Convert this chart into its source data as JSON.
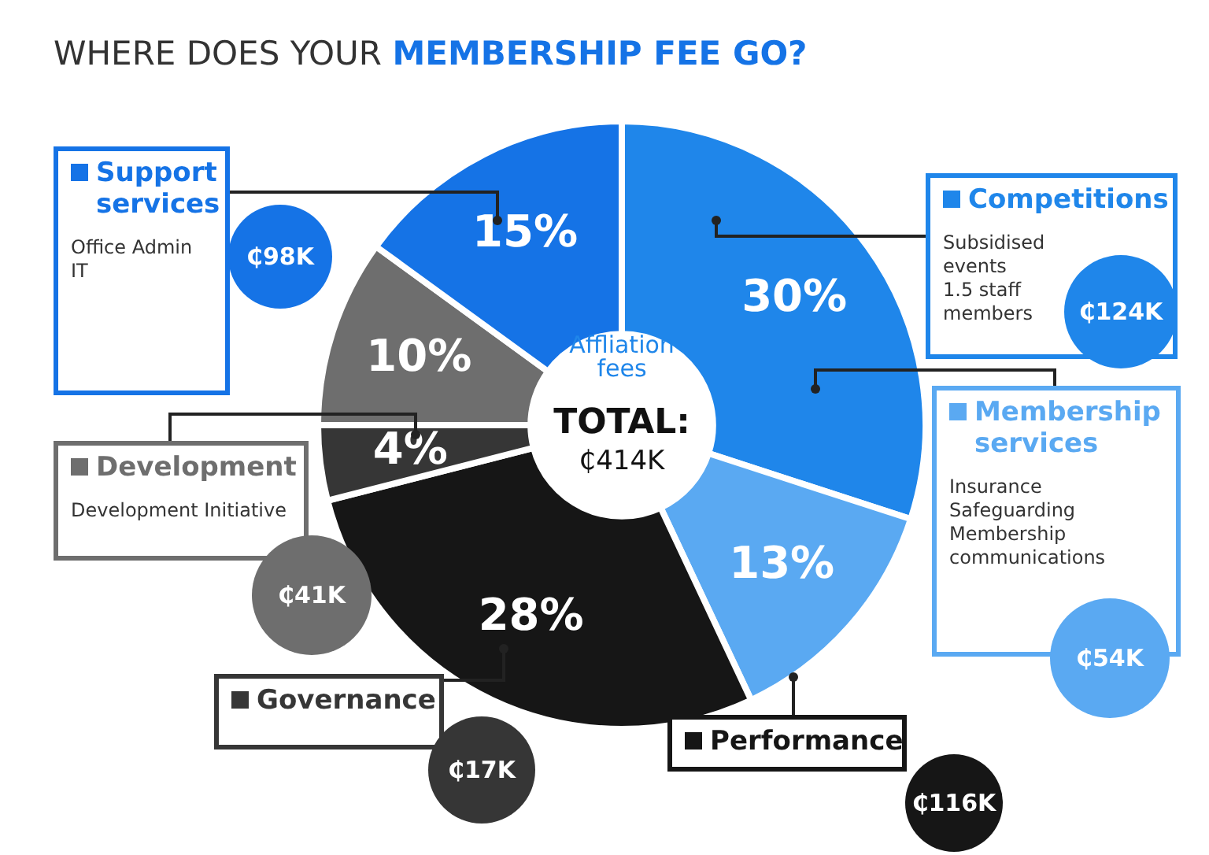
{
  "chart_data": {
    "type": "donut",
    "title": "WHERE DOES YOUR MEMBERSHIP FEE GO?",
    "categories": [
      "Competitions",
      "Membership services",
      "Performance",
      "Governance",
      "Development",
      "Support services"
    ],
    "values": [
      30,
      13,
      28,
      4,
      10,
      15
    ],
    "value_labels": [
      "30%",
      "13%",
      "28%",
      "4%",
      "10%",
      "15%"
    ],
    "colors": [
      "#1f86ea",
      "#5aa9f2",
      "#161616",
      "#363636",
      "#6e6e6e",
      "#1573e6"
    ],
    "legend": "right",
    "annotations": [
      "Affliation\nfees",
      "TOTAL:",
      "₵414K",
      "Subsidised\nevents\n1.5 staff\nmembers",
      "₵124K",
      "Insurance\nSafeguarding\nMembership\ncommunications",
      "₵54K",
      "₵116K",
      "₵17K",
      "Development Initiative",
      "₵41K",
      "Office Admin\nIT",
      "₵98K"
    ]
  }
}
